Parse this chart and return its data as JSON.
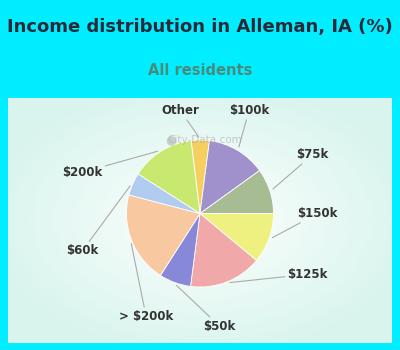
{
  "title": "Income distribution in Alleman, IA (%)",
  "subtitle": "All residents",
  "title_color": "#2a2a3a",
  "subtitle_color": "#4a8a7a",
  "background_outer": "#00eeff",
  "slices": [
    {
      "label": "Other",
      "value": 4,
      "color": "#f5d060"
    },
    {
      "label": "$100k",
      "value": 13,
      "color": "#a090cc"
    },
    {
      "label": "$75k",
      "value": 10,
      "color": "#a8bc94"
    },
    {
      "label": "$150k",
      "value": 11,
      "color": "#eef080"
    },
    {
      "label": "$125k",
      "value": 16,
      "color": "#f0a8a8"
    },
    {
      "label": "$50k",
      "value": 7,
      "color": "#8888d8"
    },
    {
      "label": "> $200k",
      "value": 20,
      "color": "#f8c8a0"
    },
    {
      "label": "$60k",
      "value": 5,
      "color": "#b0ccee"
    },
    {
      "label": "$200k",
      "value": 14,
      "color": "#c8e870"
    }
  ],
  "label_fontsize": 8.5,
  "title_fontsize": 13,
  "subtitle_fontsize": 10.5,
  "watermark": "City-Data.com"
}
